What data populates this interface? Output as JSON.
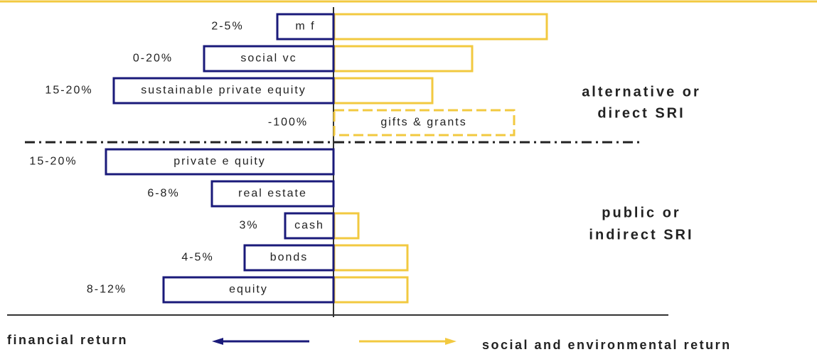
{
  "rows": [
    {
      "label": "m f",
      "return": "2-5%"
    },
    {
      "label": "social vc",
      "return": "0-20%"
    },
    {
      "label": "sustainable private equity",
      "return": "15-20%"
    },
    {
      "label": "gifts & grants",
      "return": "-100%"
    },
    {
      "label": "private e quity",
      "return": "15-20%"
    },
    {
      "label": "real estate",
      "return": "6-8%"
    },
    {
      "label": "cash",
      "return": "3%"
    },
    {
      "label": "bonds",
      "return": "4-5%"
    },
    {
      "label": "equity",
      "return": "8-12%"
    }
  ],
  "groups": [
    {
      "lines": [
        "alternative or",
        "direct SRI"
      ]
    },
    {
      "lines": [
        "public or",
        "indirect SRI"
      ]
    }
  ],
  "footer": {
    "left": "financial return",
    "right": "social and environmental return"
  }
}
